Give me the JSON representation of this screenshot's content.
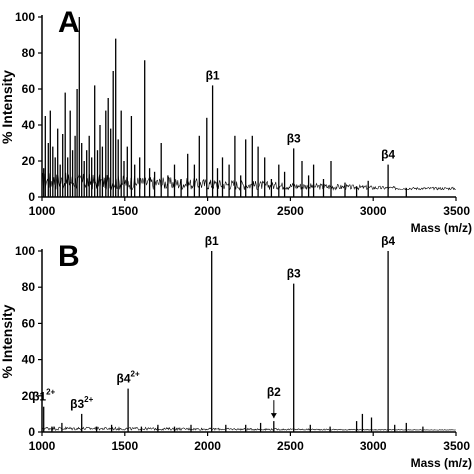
{
  "chart_data": [
    {
      "type": "line",
      "panel_label": "A",
      "xlabel": "Mass (m/z)",
      "ylabel": "% Intensity",
      "xlim": [
        1000,
        3500
      ],
      "ylim": [
        0,
        100
      ],
      "x_ticks": [
        "1000",
        "1500",
        "2000",
        "2500",
        "3000",
        "3500"
      ],
      "y_ticks": [
        "0",
        "20",
        "40",
        "60",
        "80",
        "100"
      ],
      "baseline": 4,
      "noise_level": 10,
      "peaks": [
        {
          "x": 1010,
          "y": 16
        },
        {
          "x": 1020,
          "y": 45
        },
        {
          "x": 1038,
          "y": 30
        },
        {
          "x": 1050,
          "y": 48
        },
        {
          "x": 1065,
          "y": 28
        },
        {
          "x": 1080,
          "y": 22
        },
        {
          "x": 1095,
          "y": 38
        },
        {
          "x": 1110,
          "y": 18
        },
        {
          "x": 1125,
          "y": 35
        },
        {
          "x": 1140,
          "y": 58
        },
        {
          "x": 1155,
          "y": 22
        },
        {
          "x": 1170,
          "y": 48
        },
        {
          "x": 1185,
          "y": 26
        },
        {
          "x": 1200,
          "y": 34
        },
        {
          "x": 1212,
          "y": 60
        },
        {
          "x": 1225,
          "y": 100
        },
        {
          "x": 1240,
          "y": 30
        },
        {
          "x": 1255,
          "y": 20
        },
        {
          "x": 1270,
          "y": 26
        },
        {
          "x": 1285,
          "y": 34
        },
        {
          "x": 1300,
          "y": 22
        },
        {
          "x": 1318,
          "y": 62
        },
        {
          "x": 1335,
          "y": 26
        },
        {
          "x": 1350,
          "y": 40
        },
        {
          "x": 1365,
          "y": 28
        },
        {
          "x": 1385,
          "y": 48
        },
        {
          "x": 1400,
          "y": 55
        },
        {
          "x": 1415,
          "y": 38
        },
        {
          "x": 1430,
          "y": 70
        },
        {
          "x": 1445,
          "y": 88
        },
        {
          "x": 1460,
          "y": 32
        },
        {
          "x": 1478,
          "y": 48
        },
        {
          "x": 1495,
          "y": 20
        },
        {
          "x": 1515,
          "y": 28
        },
        {
          "x": 1540,
          "y": 45
        },
        {
          "x": 1560,
          "y": 18
        },
        {
          "x": 1590,
          "y": 22
        },
        {
          "x": 1620,
          "y": 76
        },
        {
          "x": 1650,
          "y": 16
        },
        {
          "x": 1680,
          "y": 14
        },
        {
          "x": 1720,
          "y": 30
        },
        {
          "x": 1760,
          "y": 12
        },
        {
          "x": 1800,
          "y": 18
        },
        {
          "x": 1840,
          "y": 10
        },
        {
          "x": 1880,
          "y": 24
        },
        {
          "x": 1920,
          "y": 18
        },
        {
          "x": 1950,
          "y": 34
        },
        {
          "x": 1995,
          "y": 44
        },
        {
          "x": 2030,
          "y": 62
        },
        {
          "x": 2060,
          "y": 16
        },
        {
          "x": 2090,
          "y": 22
        },
        {
          "x": 2130,
          "y": 18
        },
        {
          "x": 2165,
          "y": 34
        },
        {
          "x": 2200,
          "y": 12
        },
        {
          "x": 2230,
          "y": 32
        },
        {
          "x": 2270,
          "y": 34
        },
        {
          "x": 2305,
          "y": 28
        },
        {
          "x": 2345,
          "y": 22
        },
        {
          "x": 2385,
          "y": 10
        },
        {
          "x": 2430,
          "y": 18
        },
        {
          "x": 2465,
          "y": 14
        },
        {
          "x": 2520,
          "y": 27
        },
        {
          "x": 2570,
          "y": 20
        },
        {
          "x": 2610,
          "y": 12
        },
        {
          "x": 2640,
          "y": 18
        },
        {
          "x": 2700,
          "y": 10
        },
        {
          "x": 2745,
          "y": 20
        },
        {
          "x": 2830,
          "y": 8
        },
        {
          "x": 2900,
          "y": 6
        },
        {
          "x": 2970,
          "y": 9
        },
        {
          "x": 3090,
          "y": 18
        },
        {
          "x": 3200,
          "y": 5
        }
      ],
      "annotations": [
        {
          "text": "β1",
          "x": 2030,
          "y": 62
        },
        {
          "text": "β3",
          "x": 2520,
          "y": 27
        },
        {
          "text": "β4",
          "x": 3090,
          "y": 18
        }
      ]
    },
    {
      "type": "line",
      "panel_label": "B",
      "xlabel": "Mass (m/z)",
      "ylabel": "% Intensity",
      "xlim": [
        1000,
        3500
      ],
      "ylim": [
        0,
        100
      ],
      "x_ticks": [
        "1000",
        "1500",
        "2000",
        "2500",
        "3000",
        "3500"
      ],
      "y_ticks": [
        "0",
        "20",
        "40",
        "60",
        "80",
        "100"
      ],
      "baseline": 1,
      "noise_level": 2,
      "peaks": [
        {
          "x": 1010,
          "y": 14
        },
        {
          "x": 1060,
          "y": 3
        },
        {
          "x": 1120,
          "y": 5
        },
        {
          "x": 1240,
          "y": 10
        },
        {
          "x": 1330,
          "y": 3
        },
        {
          "x": 1420,
          "y": 4
        },
        {
          "x": 1520,
          "y": 24
        },
        {
          "x": 1600,
          "y": 3
        },
        {
          "x": 1700,
          "y": 4
        },
        {
          "x": 1800,
          "y": 3
        },
        {
          "x": 1900,
          "y": 4
        },
        {
          "x": 2025,
          "y": 100
        },
        {
          "x": 2110,
          "y": 4
        },
        {
          "x": 2230,
          "y": 4
        },
        {
          "x": 2320,
          "y": 5
        },
        {
          "x": 2400,
          "y": 6
        },
        {
          "x": 2520,
          "y": 82
        },
        {
          "x": 2620,
          "y": 4
        },
        {
          "x": 2740,
          "y": 3
        },
        {
          "x": 2900,
          "y": 6
        },
        {
          "x": 2935,
          "y": 10
        },
        {
          "x": 2990,
          "y": 8
        },
        {
          "x": 3090,
          "y": 100
        },
        {
          "x": 3130,
          "y": 4
        },
        {
          "x": 3200,
          "y": 5
        },
        {
          "x": 3300,
          "y": 3
        }
      ],
      "annotations": [
        {
          "text": "β1",
          "sup": "2+",
          "x": 1010,
          "y": 14
        },
        {
          "text": "β3",
          "sup": "2+",
          "x": 1240,
          "y": 10
        },
        {
          "text": "β4",
          "sup": "2+",
          "x": 1520,
          "y": 24
        },
        {
          "text": "β1",
          "x": 2025,
          "y": 100
        },
        {
          "text": "β2",
          "x": 2400,
          "y": 6,
          "arrow": true
        },
        {
          "text": "β3",
          "x": 2520,
          "y": 82
        },
        {
          "text": "β4",
          "x": 3090,
          "y": 100
        }
      ]
    }
  ]
}
